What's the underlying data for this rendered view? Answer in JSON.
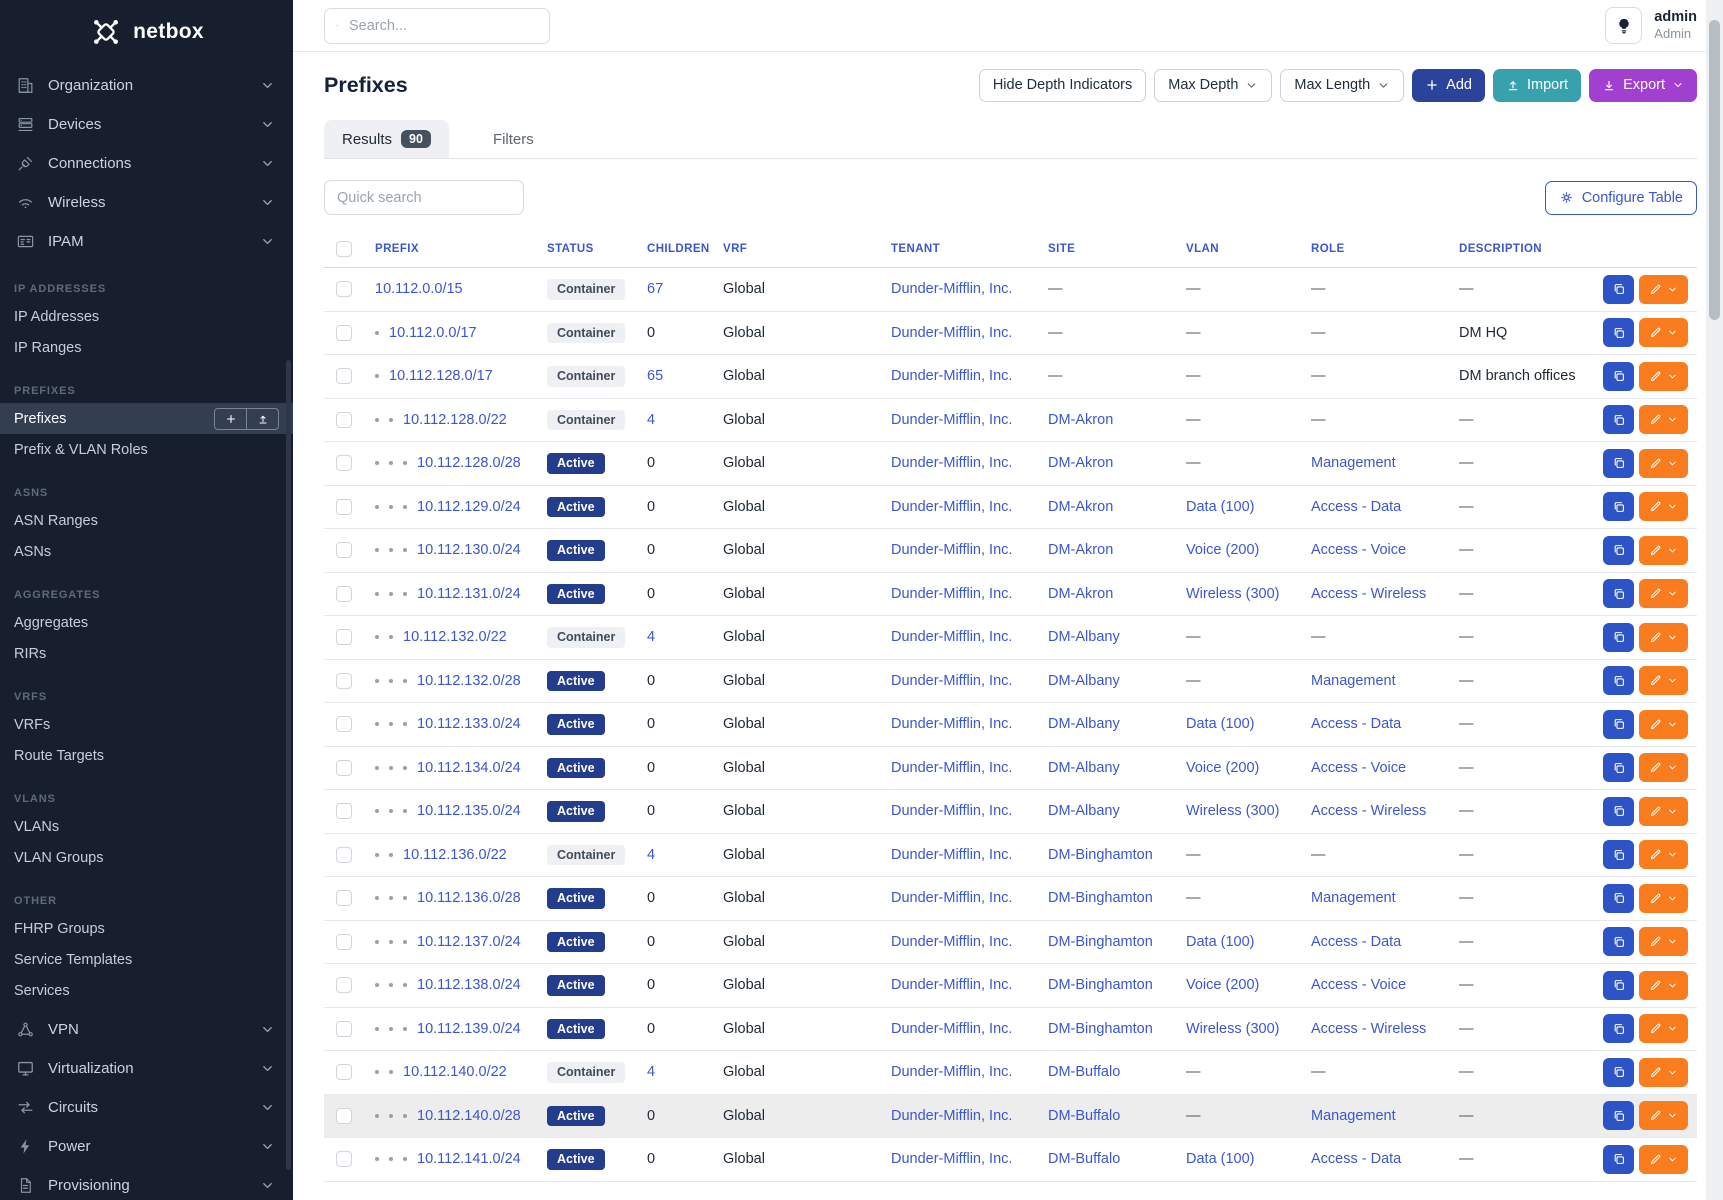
{
  "brand": {
    "name": "netbox"
  },
  "topbar": {
    "search_placeholder": "Search...",
    "user_name": "admin",
    "user_role": "Admin"
  },
  "page": {
    "title": "Prefixes",
    "toolbar": {
      "hide_depth": "Hide Depth Indicators",
      "max_depth": "Max Depth",
      "max_length": "Max Length",
      "add": "Add",
      "import": "Import",
      "export": "Export"
    },
    "tabs": {
      "results": "Results",
      "results_count": "90",
      "filters": "Filters"
    },
    "quick_search_placeholder": "Quick search",
    "configure_table": "Configure Table"
  },
  "sidebar": {
    "groups_top": [
      {
        "label": "Organization",
        "icon": "building-icon"
      },
      {
        "label": "Devices",
        "icon": "devices-icon"
      },
      {
        "label": "Connections",
        "icon": "connections-icon"
      },
      {
        "label": "Wireless",
        "icon": "wifi-icon"
      },
      {
        "label": "IPAM",
        "icon": "ipam-icon"
      }
    ],
    "sections": [
      {
        "label": "IP ADDRESSES",
        "items": [
          {
            "label": "IP Addresses"
          },
          {
            "label": "IP Ranges"
          }
        ]
      },
      {
        "label": "PREFIXES",
        "items": [
          {
            "label": "Prefixes",
            "active": true
          },
          {
            "label": "Prefix & VLAN Roles"
          }
        ]
      },
      {
        "label": "ASNS",
        "items": [
          {
            "label": "ASN Ranges"
          },
          {
            "label": "ASNs"
          }
        ]
      },
      {
        "label": "AGGREGATES",
        "items": [
          {
            "label": "Aggregates"
          },
          {
            "label": "RIRs"
          }
        ]
      },
      {
        "label": "VRFS",
        "items": [
          {
            "label": "VRFs"
          },
          {
            "label": "Route Targets"
          }
        ]
      },
      {
        "label": "VLANS",
        "items": [
          {
            "label": "VLANs"
          },
          {
            "label": "VLAN Groups"
          }
        ]
      },
      {
        "label": "OTHER",
        "items": [
          {
            "label": "FHRP Groups"
          },
          {
            "label": "Service Templates"
          },
          {
            "label": "Services"
          }
        ]
      }
    ],
    "groups_bottom": [
      {
        "label": "VPN",
        "icon": "vpn-icon"
      },
      {
        "label": "Virtualization",
        "icon": "virtualization-icon"
      },
      {
        "label": "Circuits",
        "icon": "circuits-icon"
      },
      {
        "label": "Power",
        "icon": "power-icon"
      },
      {
        "label": "Provisioning",
        "icon": "provisioning-icon"
      }
    ]
  },
  "table": {
    "columns": [
      "PREFIX",
      "STATUS",
      "CHILDREN",
      "VRF",
      "TENANT",
      "SITE",
      "VLAN",
      "ROLE",
      "DESCRIPTION"
    ],
    "rows": [
      {
        "prefix": "10.112.0.0/15",
        "depth": 0,
        "status": "Container",
        "children": "67",
        "vrf": "Global",
        "tenant": "Dunder-Mifflin, Inc.",
        "site": "",
        "vlan": "",
        "role": "",
        "description": ""
      },
      {
        "prefix": "10.112.0.0/17",
        "depth": 1,
        "status": "Container",
        "children": "0",
        "vrf": "Global",
        "tenant": "Dunder-Mifflin, Inc.",
        "site": "",
        "vlan": "",
        "role": "",
        "description": "DM HQ"
      },
      {
        "prefix": "10.112.128.0/17",
        "depth": 1,
        "status": "Container",
        "children": "65",
        "vrf": "Global",
        "tenant": "Dunder-Mifflin, Inc.",
        "site": "",
        "vlan": "",
        "role": "",
        "description": "DM branch offices"
      },
      {
        "prefix": "10.112.128.0/22",
        "depth": 2,
        "status": "Container",
        "children": "4",
        "vrf": "Global",
        "tenant": "Dunder-Mifflin, Inc.",
        "site": "DM-Akron",
        "vlan": "",
        "role": "",
        "description": ""
      },
      {
        "prefix": "10.112.128.0/28",
        "depth": 3,
        "status": "Active",
        "children": "0",
        "vrf": "Global",
        "tenant": "Dunder-Mifflin, Inc.",
        "site": "DM-Akron",
        "vlan": "",
        "role": "Management",
        "description": ""
      },
      {
        "prefix": "10.112.129.0/24",
        "depth": 3,
        "status": "Active",
        "children": "0",
        "vrf": "Global",
        "tenant": "Dunder-Mifflin, Inc.",
        "site": "DM-Akron",
        "vlan": "Data (100)",
        "role": "Access - Data",
        "description": ""
      },
      {
        "prefix": "10.112.130.0/24",
        "depth": 3,
        "status": "Active",
        "children": "0",
        "vrf": "Global",
        "tenant": "Dunder-Mifflin, Inc.",
        "site": "DM-Akron",
        "vlan": "Voice (200)",
        "role": "Access - Voice",
        "description": ""
      },
      {
        "prefix": "10.112.131.0/24",
        "depth": 3,
        "status": "Active",
        "children": "0",
        "vrf": "Global",
        "tenant": "Dunder-Mifflin, Inc.",
        "site": "DM-Akron",
        "vlan": "Wireless (300)",
        "role": "Access - Wireless",
        "description": ""
      },
      {
        "prefix": "10.112.132.0/22",
        "depth": 2,
        "status": "Container",
        "children": "4",
        "vrf": "Global",
        "tenant": "Dunder-Mifflin, Inc.",
        "site": "DM-Albany",
        "vlan": "",
        "role": "",
        "description": ""
      },
      {
        "prefix": "10.112.132.0/28",
        "depth": 3,
        "status": "Active",
        "children": "0",
        "vrf": "Global",
        "tenant": "Dunder-Mifflin, Inc.",
        "site": "DM-Albany",
        "vlan": "",
        "role": "Management",
        "description": ""
      },
      {
        "prefix": "10.112.133.0/24",
        "depth": 3,
        "status": "Active",
        "children": "0",
        "vrf": "Global",
        "tenant": "Dunder-Mifflin, Inc.",
        "site": "DM-Albany",
        "vlan": "Data (100)",
        "role": "Access - Data",
        "description": ""
      },
      {
        "prefix": "10.112.134.0/24",
        "depth": 3,
        "status": "Active",
        "children": "0",
        "vrf": "Global",
        "tenant": "Dunder-Mifflin, Inc.",
        "site": "DM-Albany",
        "vlan": "Voice (200)",
        "role": "Access - Voice",
        "description": ""
      },
      {
        "prefix": "10.112.135.0/24",
        "depth": 3,
        "status": "Active",
        "children": "0",
        "vrf": "Global",
        "tenant": "Dunder-Mifflin, Inc.",
        "site": "DM-Albany",
        "vlan": "Wireless (300)",
        "role": "Access - Wireless",
        "description": ""
      },
      {
        "prefix": "10.112.136.0/22",
        "depth": 2,
        "status": "Container",
        "children": "4",
        "vrf": "Global",
        "tenant": "Dunder-Mifflin, Inc.",
        "site": "DM-Binghamton",
        "vlan": "",
        "role": "",
        "description": ""
      },
      {
        "prefix": "10.112.136.0/28",
        "depth": 3,
        "status": "Active",
        "children": "0",
        "vrf": "Global",
        "tenant": "Dunder-Mifflin, Inc.",
        "site": "DM-Binghamton",
        "vlan": "",
        "role": "Management",
        "description": ""
      },
      {
        "prefix": "10.112.137.0/24",
        "depth": 3,
        "status": "Active",
        "children": "0",
        "vrf": "Global",
        "tenant": "Dunder-Mifflin, Inc.",
        "site": "DM-Binghamton",
        "vlan": "Data (100)",
        "role": "Access - Data",
        "description": ""
      },
      {
        "prefix": "10.112.138.0/24",
        "depth": 3,
        "status": "Active",
        "children": "0",
        "vrf": "Global",
        "tenant": "Dunder-Mifflin, Inc.",
        "site": "DM-Binghamton",
        "vlan": "Voice (200)",
        "role": "Access - Voice",
        "description": ""
      },
      {
        "prefix": "10.112.139.0/24",
        "depth": 3,
        "status": "Active",
        "children": "0",
        "vrf": "Global",
        "tenant": "Dunder-Mifflin, Inc.",
        "site": "DM-Binghamton",
        "vlan": "Wireless (300)",
        "role": "Access - Wireless",
        "description": ""
      },
      {
        "prefix": "10.112.140.0/22",
        "depth": 2,
        "status": "Container",
        "children": "4",
        "vrf": "Global",
        "tenant": "Dunder-Mifflin, Inc.",
        "site": "DM-Buffalo",
        "vlan": "",
        "role": "",
        "description": ""
      },
      {
        "prefix": "10.112.140.0/28",
        "depth": 3,
        "status": "Active",
        "children": "0",
        "vrf": "Global",
        "tenant": "Dunder-Mifflin, Inc.",
        "site": "DM-Buffalo",
        "vlan": "",
        "role": "Management",
        "description": "",
        "highlighted": true
      },
      {
        "prefix": "10.112.141.0/24",
        "depth": 3,
        "status": "Active",
        "children": "0",
        "vrf": "Global",
        "tenant": "Dunder-Mifflin, Inc.",
        "site": "DM-Buffalo",
        "vlan": "Data (100)",
        "role": "Access - Data",
        "description": ""
      }
    ],
    "empty_value": "—"
  },
  "colors": {
    "link": "#3a57cf",
    "sidebar_bg": "#171e2e",
    "active_badge": "#233c8c",
    "container_badge_bg": "#eff0f3",
    "add_button": "#2c439c",
    "import_button": "#38a1ae",
    "export_button": "#a13fd1",
    "copy_button": "#2d54c7",
    "edit_button": "#f97d1e"
  }
}
